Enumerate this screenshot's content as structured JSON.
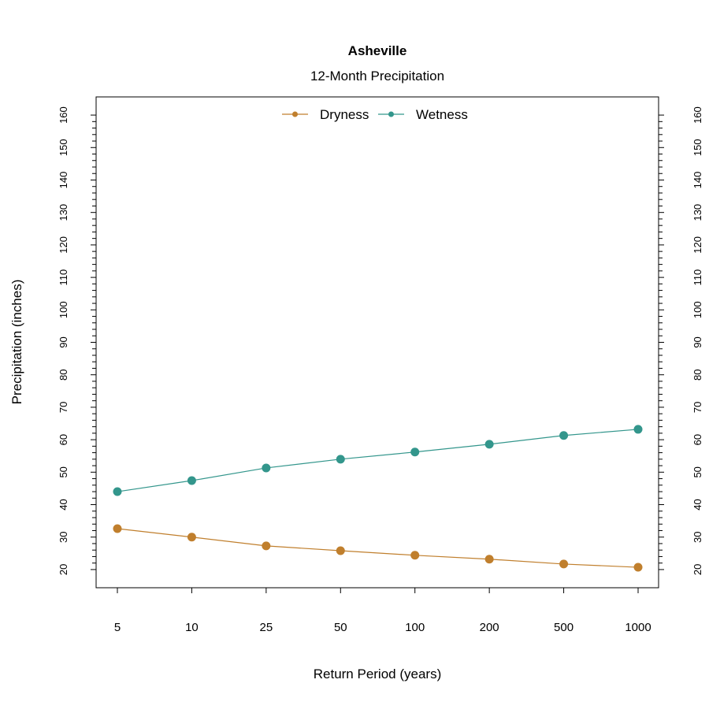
{
  "chart_data": {
    "type": "line",
    "title": "Asheville",
    "subtitle": "12-Month Precipitation",
    "xlabel": "Return Period (years)",
    "ylabel": "Precipitation (inches)",
    "categories": [
      "5",
      "10",
      "25",
      "50",
      "100",
      "200",
      "500",
      "1000"
    ],
    "ylim": [
      14.4,
      165.6
    ],
    "yticks": [
      20,
      30,
      40,
      50,
      60,
      70,
      80,
      90,
      100,
      110,
      120,
      130,
      140,
      150,
      160
    ],
    "yminor_step": 2,
    "grid": false,
    "legend_position": "top",
    "series": [
      {
        "name": "Dryness",
        "color": "#C07F2D",
        "values": [
          32.6,
          30.0,
          27.3,
          25.8,
          24.4,
          23.2,
          21.7,
          20.7
        ]
      },
      {
        "name": "Wetness",
        "color": "#33968C",
        "values": [
          44.0,
          47.4,
          51.3,
          54.0,
          56.2,
          58.6,
          61.3,
          63.2
        ]
      }
    ]
  }
}
